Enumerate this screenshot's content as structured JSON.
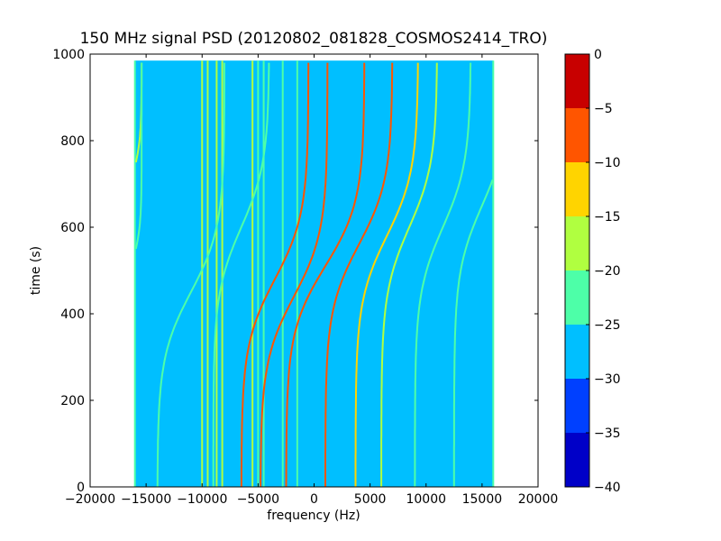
{
  "chart_data": {
    "type": "heatmap",
    "title": "150 MHz signal PSD (20120802_081828_COSMOS2414_TRO)",
    "xlabel": "frequency (Hz)",
    "ylabel": "time (s)",
    "xlim": [
      -20000,
      20000
    ],
    "ylim": [
      0,
      1000
    ],
    "xticks": [
      -20000,
      -15000,
      -10000,
      -5000,
      0,
      5000,
      10000,
      15000,
      20000
    ],
    "xtick_labels": [
      "−20000",
      "−15000",
      "−10000",
      "−5000",
      "0",
      "5000",
      "10000",
      "15000",
      "20000"
    ],
    "yticks": [
      0,
      200,
      400,
      600,
      800,
      1000
    ],
    "ytick_labels": [
      "0",
      "200",
      "400",
      "600",
      "800",
      "1000"
    ],
    "data_extent": {
      "freq_min": -16000,
      "freq_max": 16000,
      "time_min": 0,
      "time_max": 985
    },
    "background_level": -28,
    "colorbar": {
      "min": -40,
      "max": 0,
      "ticks": [
        0,
        -5,
        -10,
        -15,
        -20,
        -25,
        -30,
        -35,
        -40
      ],
      "tick_labels": [
        "0",
        "−5",
        "−10",
        "−15",
        "−20",
        "−25",
        "−30",
        "−35",
        "−40"
      ],
      "levels": [
        {
          "from": -40,
          "to": -35,
          "color": "#0000c8"
        },
        {
          "from": -35,
          "to": -30,
          "color": "#0040ff"
        },
        {
          "from": -30,
          "to": -25,
          "color": "#00bfff"
        },
        {
          "from": -25,
          "to": -20,
          "color": "#4dffa8"
        },
        {
          "from": -20,
          "to": -15,
          "color": "#b0ff40"
        },
        {
          "from": -15,
          "to": -10,
          "color": "#ffd400"
        },
        {
          "from": -10,
          "to": -5,
          "color": "#ff5500"
        },
        {
          "from": -5,
          "to": 0,
          "color": "#c80000"
        }
      ]
    },
    "vertical_lines": [
      {
        "freq": -16000,
        "level": -22
      },
      {
        "freq": -10000,
        "level": -18
      },
      {
        "freq": -9500,
        "level": -18
      },
      {
        "freq": -8700,
        "level": -18
      },
      {
        "freq": -8200,
        "level": -18
      },
      {
        "freq": -5500,
        "level": -18
      },
      {
        "freq": -5000,
        "level": -20
      },
      {
        "freq": -4500,
        "level": -20
      },
      {
        "freq": -2800,
        "level": -22
      },
      {
        "freq": -1500,
        "level": -20
      },
      {
        "freq": 16000,
        "level": -22
      }
    ],
    "doppler_traces": [
      {
        "center": -16200,
        "t_mid": 720,
        "amp": 800,
        "scale": 80,
        "level": -18
      },
      {
        "center": -16200,
        "t_mid": 520,
        "amp": 800,
        "scale": 80,
        "level": -20
      },
      {
        "center": -3500,
        "t_mid": 480,
        "amp": 3000,
        "scale": 150,
        "level": -5
      },
      {
        "center": -1800,
        "t_mid": 440,
        "amp": 3000,
        "scale": 150,
        "level": -5
      },
      {
        "center": 1000,
        "t_mid": 510,
        "amp": 3500,
        "scale": 150,
        "level": -5
      },
      {
        "center": 4000,
        "t_mid": 560,
        "amp": 3000,
        "scale": 150,
        "level": -5
      },
      {
        "center": 6500,
        "t_mid": 580,
        "amp": 2800,
        "scale": 150,
        "level": -10
      },
      {
        "center": 8500,
        "t_mid": 600,
        "amp": 2500,
        "scale": 150,
        "level": -18
      },
      {
        "center": 11500,
        "t_mid": 600,
        "amp": 2500,
        "scale": 150,
        "level": -20
      },
      {
        "center": 15000,
        "t_mid": 650,
        "amp": 2500,
        "scale": 150,
        "level": -20
      },
      {
        "center": -6500,
        "t_mid": 600,
        "amp": 2500,
        "scale": 150,
        "level": -20
      },
      {
        "center": -11000,
        "t_mid": 450,
        "amp": 3000,
        "scale": 150,
        "level": -20
      }
    ]
  }
}
